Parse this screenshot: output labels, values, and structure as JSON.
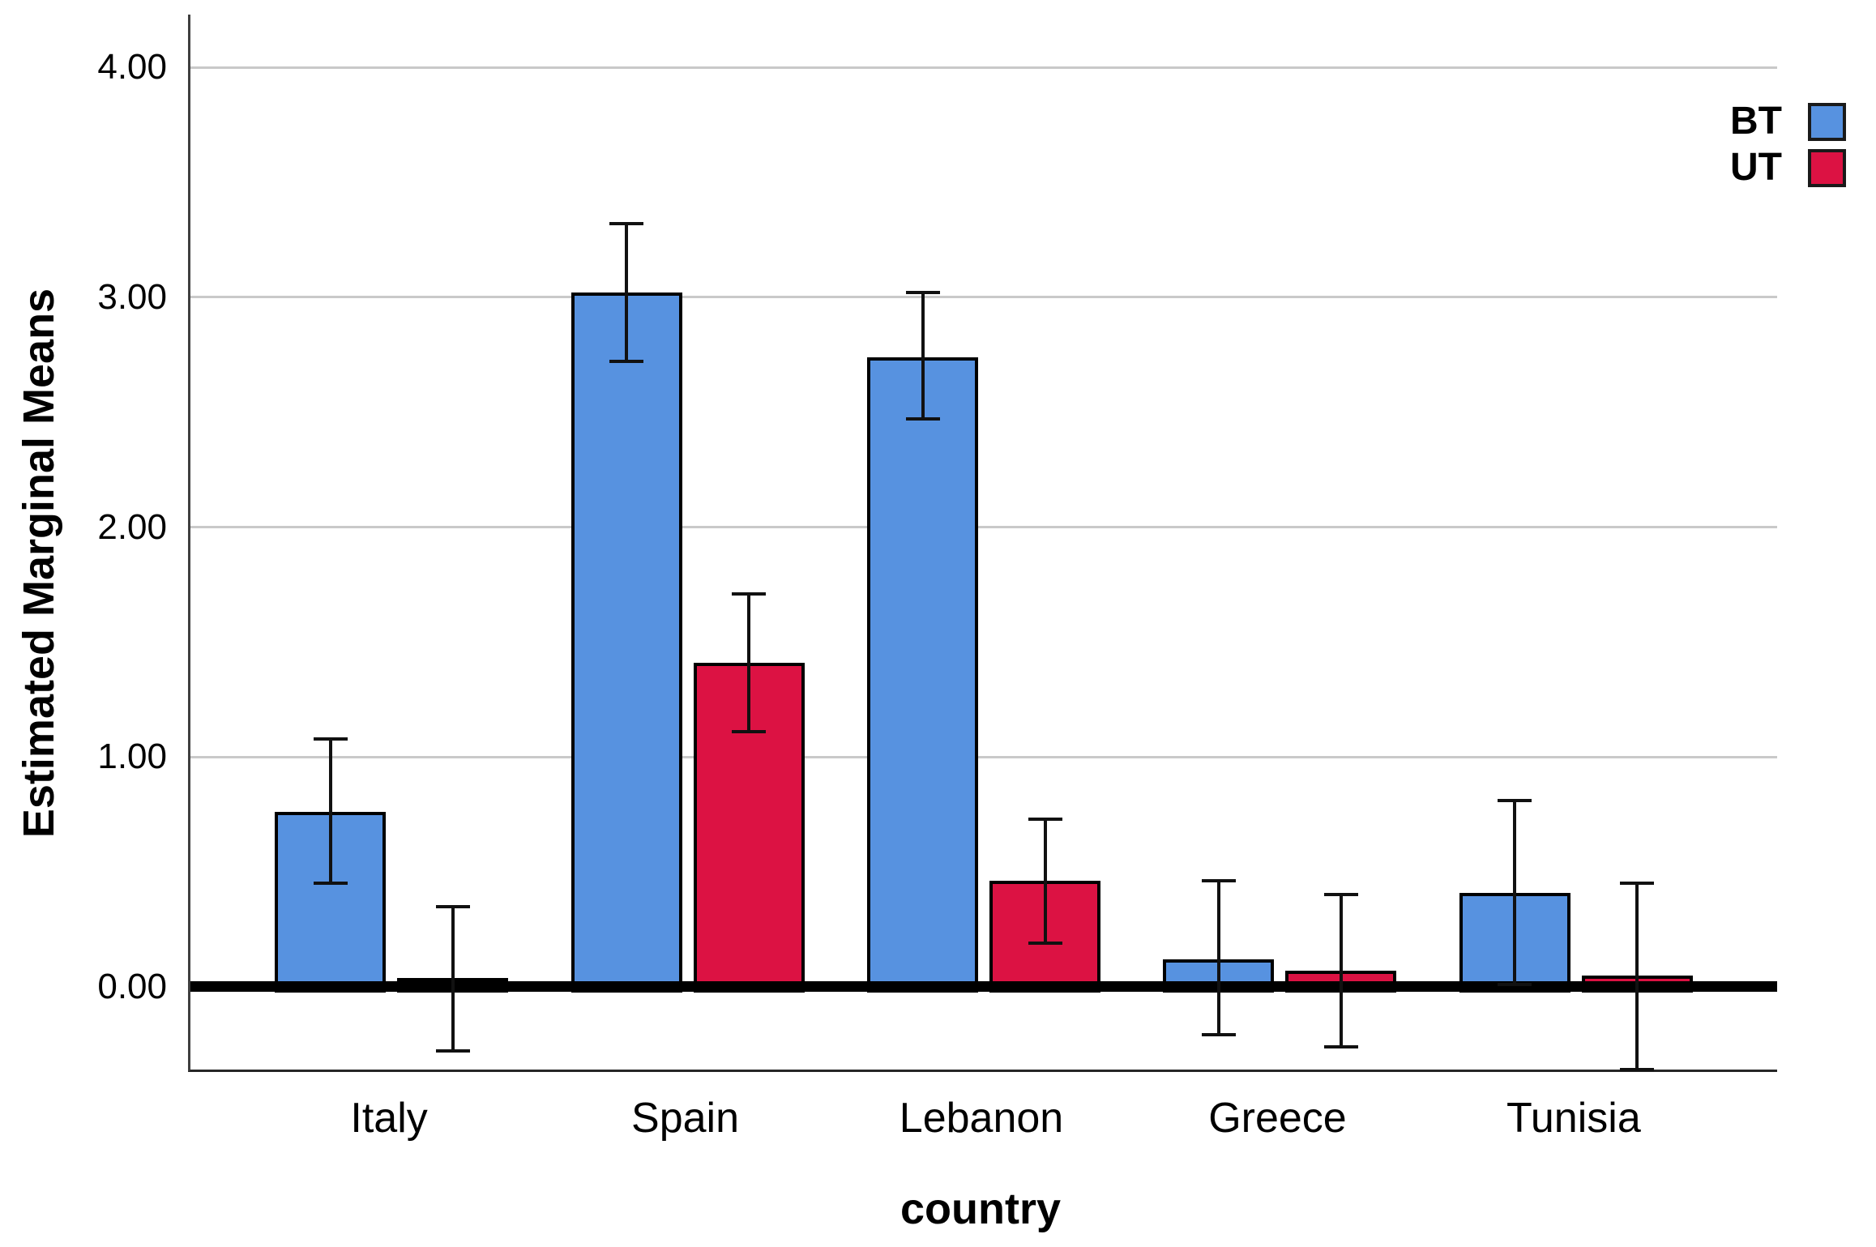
{
  "chart_data": {
    "type": "bar",
    "title": "",
    "xlabel": "country",
    "ylabel": "Estimated Marginal Means",
    "categories": [
      "Italy",
      "Spain",
      "Lebanon",
      "Greece",
      "Tunisia"
    ],
    "series": [
      {
        "name": "BT",
        "color": "#5792E0",
        "values": [
          0.76,
          3.02,
          2.74,
          0.12,
          0.41
        ],
        "error_low": [
          0.45,
          2.72,
          2.47,
          -0.21,
          0.01
        ],
        "error_high": [
          1.08,
          3.32,
          3.02,
          0.46,
          0.81
        ]
      },
      {
        "name": "UT",
        "color": "#DC1243",
        "values": [
          0.04,
          1.41,
          0.46,
          0.07,
          0.05
        ],
        "error_low": [
          -0.28,
          1.11,
          0.19,
          -0.26,
          -0.36
        ],
        "error_high": [
          0.35,
          1.71,
          0.73,
          0.4,
          0.45
        ]
      }
    ],
    "y_axis": {
      "min": -0.36,
      "max": 4.23,
      "ticks": [
        {
          "value": 0.0,
          "label": "0.00"
        },
        {
          "value": 1.0,
          "label": "1.00"
        },
        {
          "value": 2.0,
          "label": "2.00"
        },
        {
          "value": 3.0,
          "label": "3.00"
        },
        {
          "value": 4.0,
          "label": "4.00"
        }
      ]
    },
    "grid": true,
    "error_bars": true,
    "baseline_value": 0,
    "legend_position": "top-right"
  }
}
